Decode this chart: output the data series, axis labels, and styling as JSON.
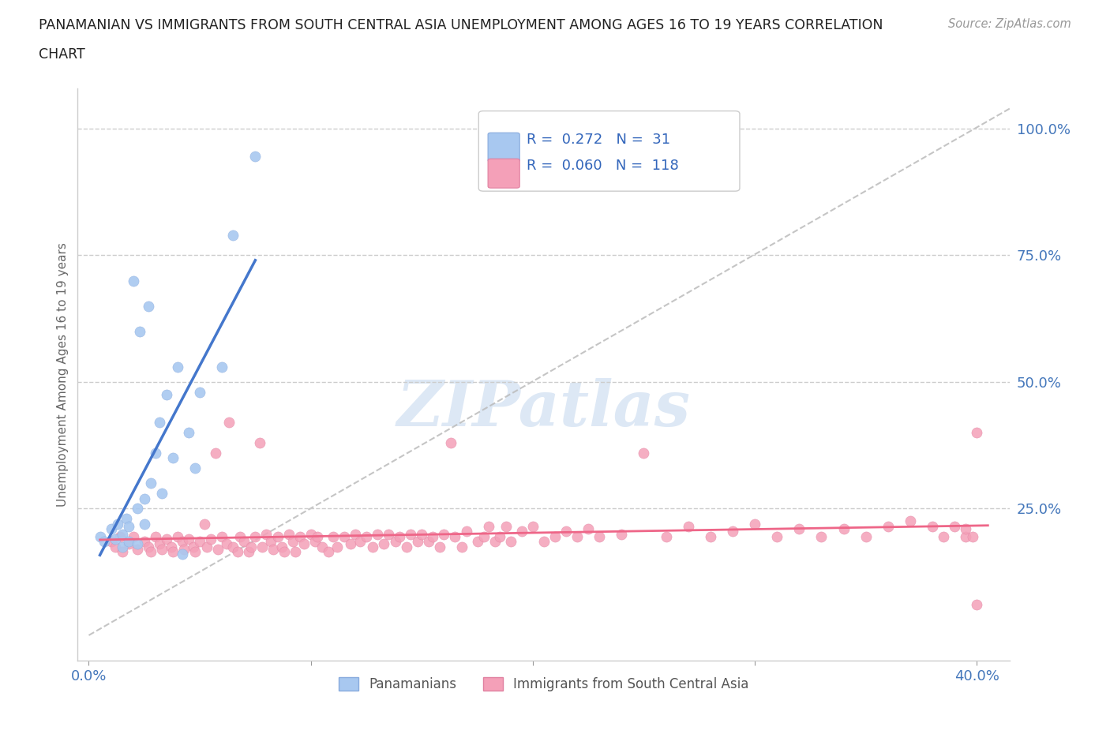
{
  "title_line1": "PANAMANIAN VS IMMIGRANTS FROM SOUTH CENTRAL ASIA UNEMPLOYMENT AMONG AGES 16 TO 19 YEARS CORRELATION",
  "title_line2": "CHART",
  "source": "Source: ZipAtlas.com",
  "ylabel": "Unemployment Among Ages 16 to 19 years",
  "R_blue": 0.272,
  "N_blue": 31,
  "R_pink": 0.06,
  "N_pink": 118,
  "blue_color": "#a8c8f0",
  "pink_color": "#f4a0b8",
  "blue_line_color": "#4477cc",
  "pink_line_color": "#ee6688",
  "diagonal_color": "#bbbbbb",
  "watermark_color": "#dde8f5",
  "legend_blue_label": "Panamanians",
  "legend_pink_label": "Immigrants from South Central Asia",
  "blue_scatter_x": [
    0.005,
    0.007,
    0.01,
    0.012,
    0.013,
    0.015,
    0.015,
    0.017,
    0.018,
    0.018,
    0.02,
    0.022,
    0.022,
    0.023,
    0.025,
    0.025,
    0.027,
    0.028,
    0.03,
    0.032,
    0.033,
    0.035,
    0.038,
    0.04,
    0.042,
    0.045,
    0.048,
    0.05,
    0.06,
    0.065,
    0.075
  ],
  "blue_scatter_y": [
    0.195,
    0.185,
    0.21,
    0.19,
    0.22,
    0.2,
    0.175,
    0.23,
    0.215,
    0.185,
    0.7,
    0.25,
    0.18,
    0.6,
    0.27,
    0.22,
    0.65,
    0.3,
    0.36,
    0.42,
    0.28,
    0.475,
    0.35,
    0.53,
    0.16,
    0.4,
    0.33,
    0.48,
    0.53,
    0.79,
    0.945
  ],
  "pink_scatter_x": [
    0.01,
    0.012,
    0.014,
    0.015,
    0.018,
    0.02,
    0.022,
    0.025,
    0.027,
    0.028,
    0.03,
    0.032,
    0.033,
    0.035,
    0.037,
    0.038,
    0.04,
    0.042,
    0.043,
    0.045,
    0.047,
    0.048,
    0.05,
    0.052,
    0.053,
    0.055,
    0.057,
    0.058,
    0.06,
    0.062,
    0.063,
    0.065,
    0.067,
    0.068,
    0.07,
    0.072,
    0.073,
    0.075,
    0.077,
    0.078,
    0.08,
    0.082,
    0.083,
    0.085,
    0.087,
    0.088,
    0.09,
    0.092,
    0.093,
    0.095,
    0.097,
    0.1,
    0.102,
    0.103,
    0.105,
    0.108,
    0.11,
    0.112,
    0.115,
    0.118,
    0.12,
    0.122,
    0.125,
    0.128,
    0.13,
    0.133,
    0.135,
    0.138,
    0.14,
    0.143,
    0.145,
    0.148,
    0.15,
    0.153,
    0.155,
    0.158,
    0.16,
    0.163,
    0.165,
    0.168,
    0.17,
    0.175,
    0.178,
    0.18,
    0.183,
    0.185,
    0.188,
    0.19,
    0.195,
    0.2,
    0.205,
    0.21,
    0.215,
    0.22,
    0.225,
    0.23,
    0.24,
    0.25,
    0.26,
    0.27,
    0.28,
    0.29,
    0.3,
    0.31,
    0.32,
    0.33,
    0.34,
    0.35,
    0.36,
    0.37,
    0.38,
    0.385,
    0.39,
    0.395,
    0.395,
    0.398,
    0.4,
    0.4
  ],
  "pink_scatter_y": [
    0.185,
    0.175,
    0.195,
    0.165,
    0.18,
    0.195,
    0.17,
    0.185,
    0.175,
    0.165,
    0.195,
    0.18,
    0.17,
    0.19,
    0.175,
    0.165,
    0.195,
    0.185,
    0.17,
    0.19,
    0.175,
    0.165,
    0.185,
    0.22,
    0.175,
    0.19,
    0.36,
    0.17,
    0.195,
    0.18,
    0.42,
    0.175,
    0.165,
    0.195,
    0.185,
    0.165,
    0.175,
    0.195,
    0.38,
    0.175,
    0.2,
    0.185,
    0.17,
    0.195,
    0.175,
    0.165,
    0.2,
    0.185,
    0.165,
    0.195,
    0.18,
    0.2,
    0.185,
    0.195,
    0.175,
    0.165,
    0.195,
    0.175,
    0.195,
    0.18,
    0.2,
    0.185,
    0.195,
    0.175,
    0.2,
    0.18,
    0.2,
    0.185,
    0.195,
    0.175,
    0.2,
    0.185,
    0.2,
    0.185,
    0.195,
    0.175,
    0.2,
    0.38,
    0.195,
    0.175,
    0.205,
    0.185,
    0.195,
    0.215,
    0.185,
    0.195,
    0.215,
    0.185,
    0.205,
    0.215,
    0.185,
    0.195,
    0.205,
    0.195,
    0.21,
    0.195,
    0.2,
    0.36,
    0.195,
    0.215,
    0.195,
    0.205,
    0.22,
    0.195,
    0.21,
    0.195,
    0.21,
    0.195,
    0.215,
    0.225,
    0.215,
    0.195,
    0.215,
    0.195,
    0.21,
    0.195,
    0.06,
    0.4
  ]
}
